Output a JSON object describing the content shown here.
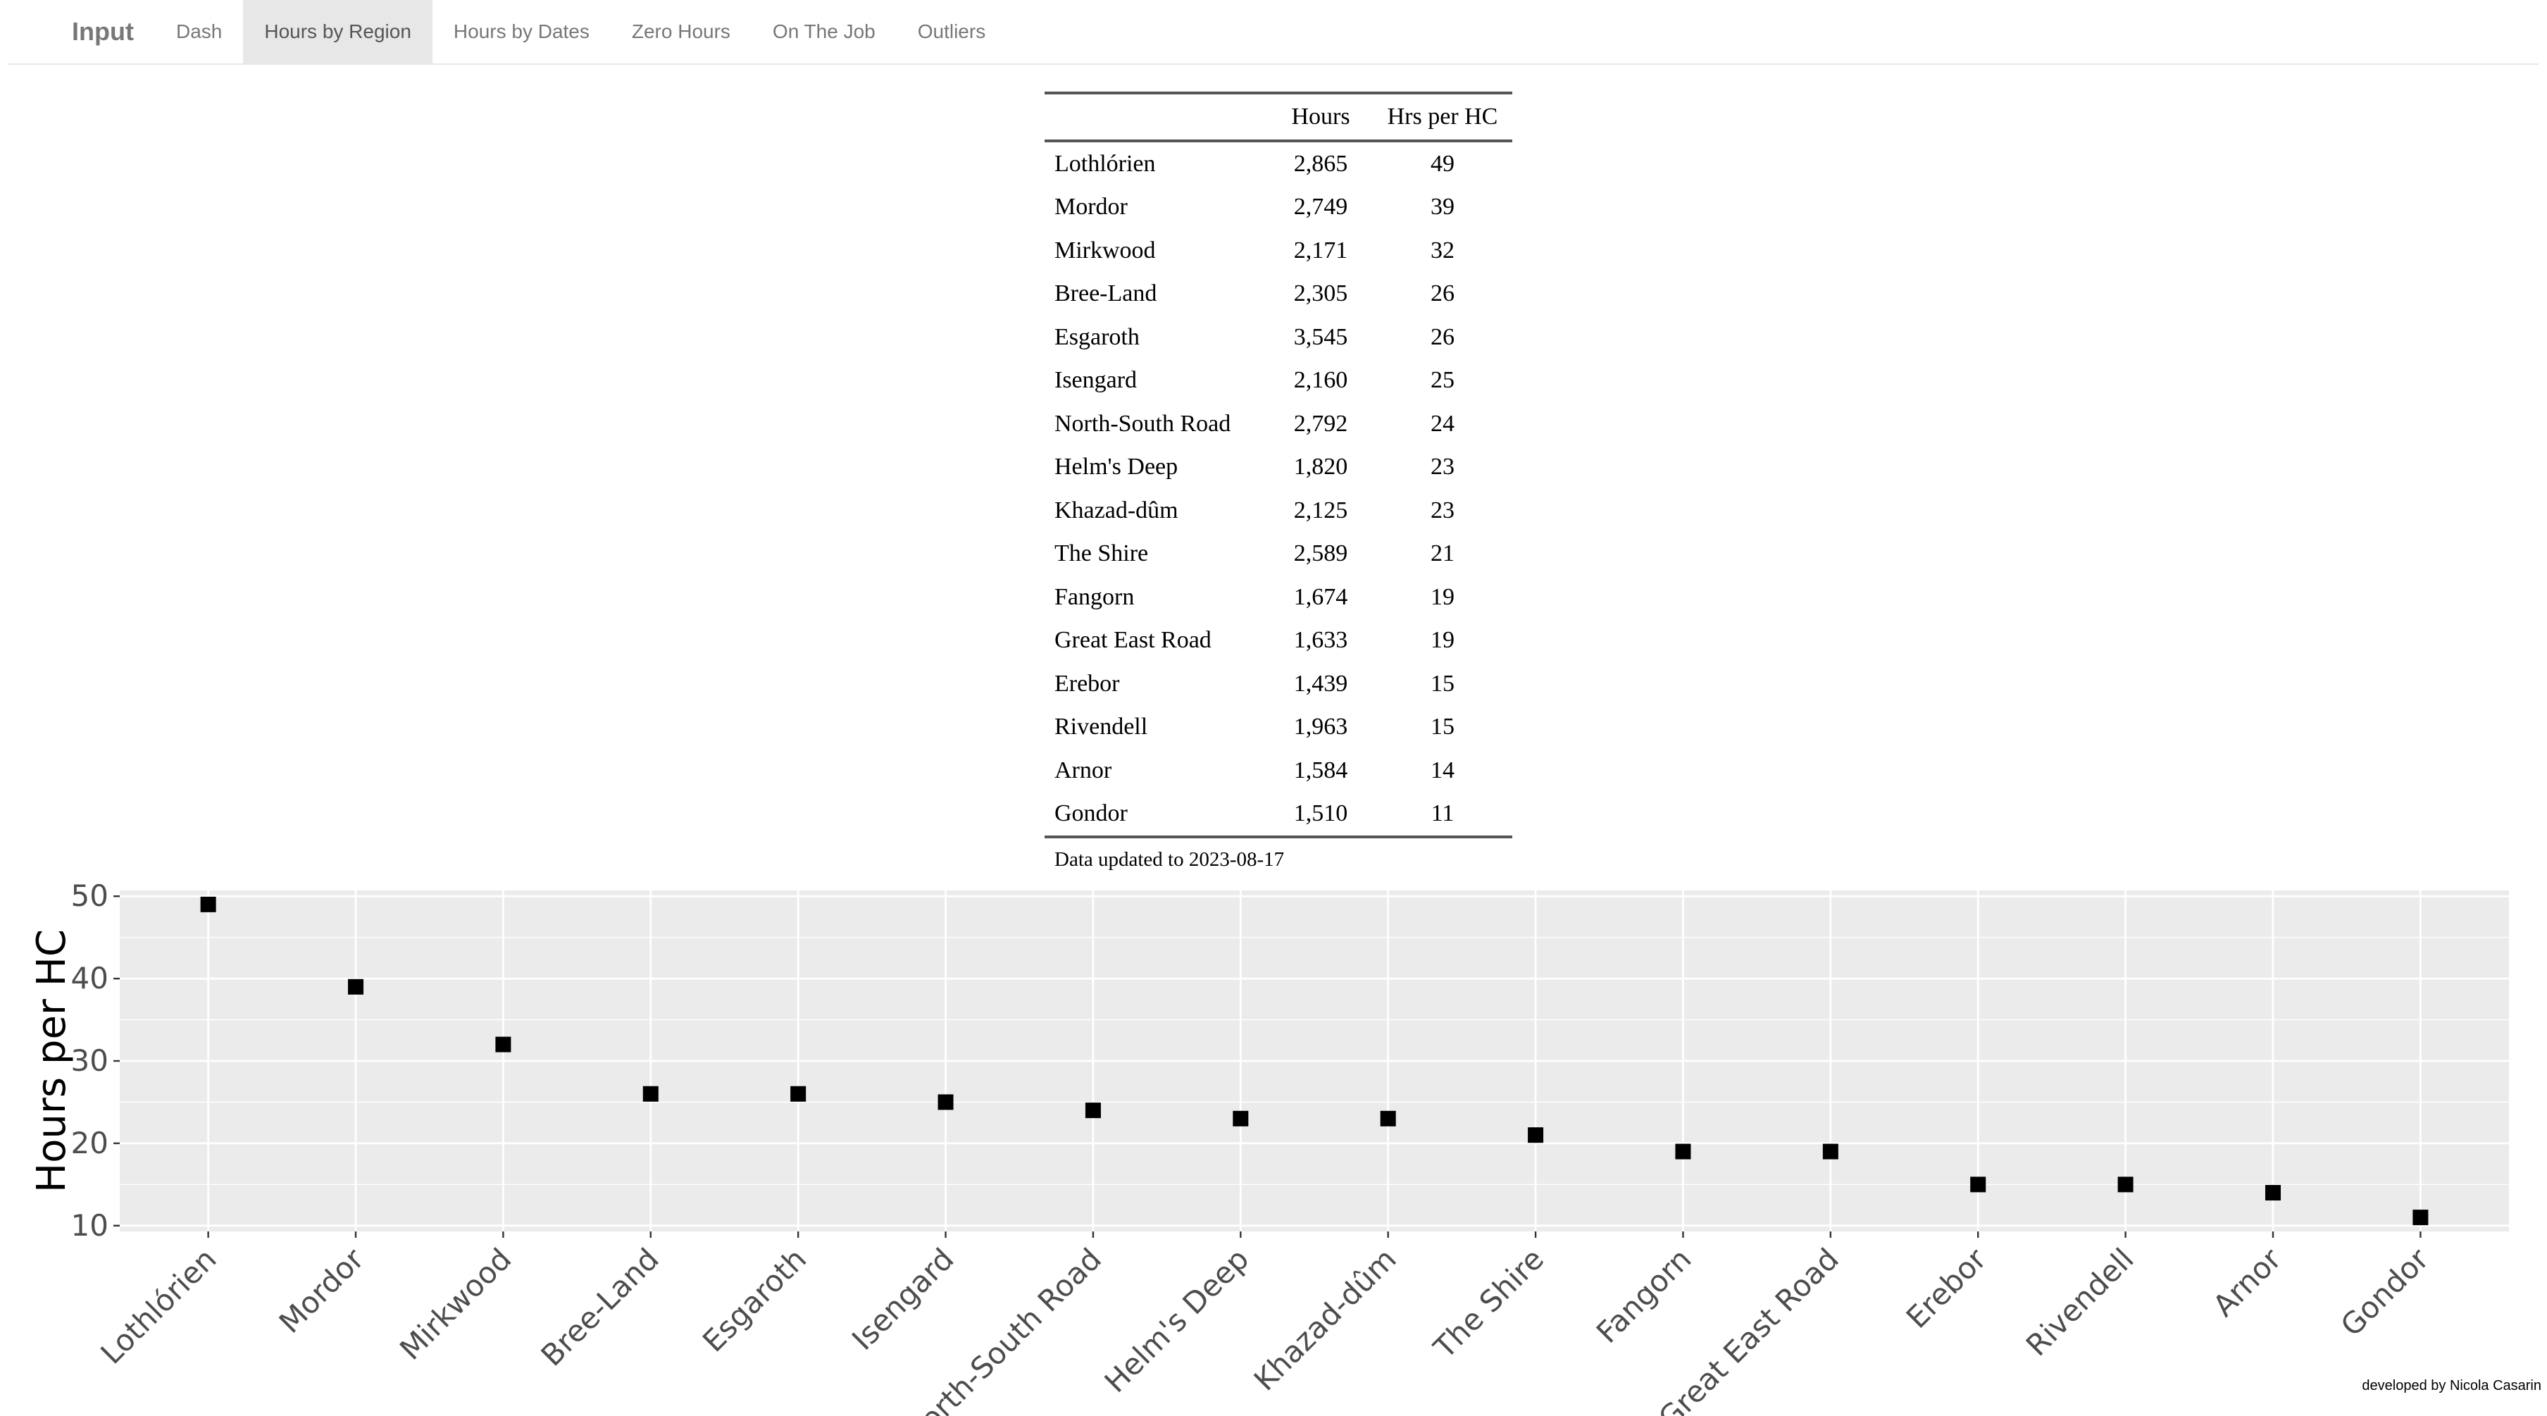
{
  "nav": {
    "brand": "Input",
    "tabs": [
      {
        "label": "Dash",
        "active": false
      },
      {
        "label": "Hours by Region",
        "active": true
      },
      {
        "label": "Hours by Dates",
        "active": false
      },
      {
        "label": "Zero Hours",
        "active": false
      },
      {
        "label": "On The Job",
        "active": false
      },
      {
        "label": "Outliers",
        "active": false
      }
    ]
  },
  "table": {
    "headers": [
      "",
      "Hours",
      "Hrs per HC"
    ],
    "rows": [
      [
        "Lothlórien",
        "2,865",
        "49"
      ],
      [
        "Mordor",
        "2,749",
        "39"
      ],
      [
        "Mirkwood",
        "2,171",
        "32"
      ],
      [
        "Bree-Land",
        "2,305",
        "26"
      ],
      [
        "Esgaroth",
        "3,545",
        "26"
      ],
      [
        "Isengard",
        "2,160",
        "25"
      ],
      [
        "North-South Road",
        "2,792",
        "24"
      ],
      [
        "Helm's Deep",
        "1,820",
        "23"
      ],
      [
        "Khazad-dûm",
        "2,125",
        "23"
      ],
      [
        "The Shire",
        "2,589",
        "21"
      ],
      [
        "Fangorn",
        "1,674",
        "19"
      ],
      [
        "Great East Road",
        "1,633",
        "19"
      ],
      [
        "Erebor",
        "1,439",
        "15"
      ],
      [
        "Rivendell",
        "1,963",
        "15"
      ],
      [
        "Arnor",
        "1,584",
        "14"
      ],
      [
        "Gondor",
        "1,510",
        "11"
      ]
    ],
    "caption": "Data updated to 2023-08-17"
  },
  "chart_data": {
    "type": "scatter",
    "categories": [
      "Lothlórien",
      "Mordor",
      "Mirkwood",
      "Bree-Land",
      "Esgaroth",
      "Isengard",
      "North-South Road",
      "Helm's Deep",
      "Khazad-dûm",
      "The Shire",
      "Fangorn",
      "Great East Road",
      "Erebor",
      "Rivendell",
      "Arnor",
      "Gondor"
    ],
    "values": [
      49,
      39,
      32,
      26,
      26,
      25,
      24,
      23,
      23,
      21,
      19,
      19,
      15,
      15,
      14,
      11
    ],
    "xlabel": "",
    "ylabel": "Hours per HC",
    "ylim": [
      9.3,
      50.7
    ],
    "yticks": [
      10,
      20,
      30,
      40,
      50
    ],
    "grid": true,
    "marker": "square",
    "colors": {
      "panel": "#ebebeb",
      "grid": "#ffffff",
      "point": "#000000",
      "tick_text": "#4d4d4d"
    }
  },
  "footer": "developed by Nicola Casarin"
}
